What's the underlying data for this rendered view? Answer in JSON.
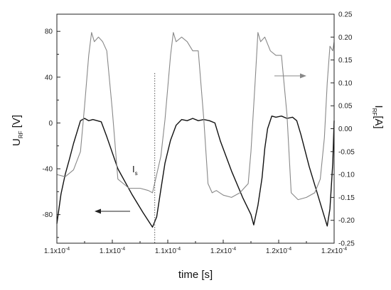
{
  "chart_data": {
    "type": "line",
    "xlabel": "time [s]",
    "x_tick_labels": [
      "1.1x10",
      "1.1x10",
      "1.1x10",
      "1.2x10",
      "1.2x10",
      "1.2x10"
    ],
    "x_tick_exponent": "-4",
    "xlim": [
      0,
      1
    ],
    "ylabel_left": {
      "main": "U",
      "sub": "RF",
      "unit": " [V]"
    },
    "ylabel_right": {
      "main": "I",
      "sub": "RF",
      "unit": "[A]"
    },
    "ylim_left": [
      -105,
      95
    ],
    "ylim_right": [
      -0.25,
      0.25
    ],
    "yticks_left": [
      "-80",
      "-40",
      "0",
      "40",
      "80"
    ],
    "yticks_left_values": [
      -80,
      -40,
      0,
      40,
      80
    ],
    "yticks_right": [
      "-0.25",
      "-0.20",
      "-0.15",
      "-0.10",
      "-0.05",
      "0.00",
      "0.05",
      "0.10",
      "0.15",
      "0.20",
      "0.25"
    ],
    "yticks_right_values": [
      -0.25,
      -0.2,
      -0.15,
      -0.1,
      -0.05,
      0,
      0.05,
      0.1,
      0.15,
      0.2,
      0.25
    ],
    "annotation_text": {
      "main": "I",
      "sub": "s"
    },
    "annotation_line_x": 0.353,
    "series": [
      {
        "axis": "left",
        "color": "#111111",
        "points": [
          [
            0,
            -88
          ],
          [
            0.015,
            -62
          ],
          [
            0.03,
            -45
          ],
          [
            0.045,
            -32
          ],
          [
            0.06,
            -18
          ],
          [
            0.075,
            -6
          ],
          [
            0.085,
            2
          ],
          [
            0.1,
            4
          ],
          [
            0.115,
            2
          ],
          [
            0.13,
            3
          ],
          [
            0.145,
            2
          ],
          [
            0.16,
            1
          ],
          [
            0.18,
            -12
          ],
          [
            0.22,
            -40
          ],
          [
            0.27,
            -62
          ],
          [
            0.31,
            -78
          ],
          [
            0.345,
            -91
          ],
          [
            0.36,
            -82
          ],
          [
            0.375,
            -58
          ],
          [
            0.39,
            -35
          ],
          [
            0.41,
            -15
          ],
          [
            0.43,
            -2
          ],
          [
            0.45,
            3
          ],
          [
            0.47,
            2
          ],
          [
            0.49,
            4
          ],
          [
            0.51,
            2
          ],
          [
            0.53,
            3
          ],
          [
            0.55,
            2
          ],
          [
            0.57,
            0
          ],
          [
            0.59,
            -16
          ],
          [
            0.63,
            -42
          ],
          [
            0.67,
            -65
          ],
          [
            0.7,
            -80
          ],
          [
            0.71,
            -89
          ],
          [
            0.725,
            -72
          ],
          [
            0.74,
            -48
          ],
          [
            0.75,
            -22
          ],
          [
            0.76,
            -5
          ],
          [
            0.775,
            6
          ],
          [
            0.79,
            5
          ],
          [
            0.81,
            6
          ],
          [
            0.83,
            4
          ],
          [
            0.85,
            5
          ],
          [
            0.865,
            2
          ],
          [
            0.88,
            -10
          ],
          [
            0.91,
            -38
          ],
          [
            0.94,
            -62
          ],
          [
            0.96,
            -78
          ],
          [
            0.975,
            -90
          ],
          [
            0.985,
            -75
          ],
          [
            0.995,
            -35
          ],
          [
            1,
            2
          ]
        ]
      },
      {
        "axis": "right",
        "color": "#888888",
        "points": [
          [
            0,
            -0.1
          ],
          [
            0.03,
            -0.105
          ],
          [
            0.06,
            -0.09
          ],
          [
            0.085,
            -0.05
          ],
          [
            0.1,
            0.05
          ],
          [
            0.115,
            0.16
          ],
          [
            0.125,
            0.21
          ],
          [
            0.135,
            0.19
          ],
          [
            0.15,
            0.2
          ],
          [
            0.165,
            0.19
          ],
          [
            0.18,
            0.17
          ],
          [
            0.2,
            0.04
          ],
          [
            0.22,
            -0.11
          ],
          [
            0.24,
            -0.12
          ],
          [
            0.26,
            -0.13
          ],
          [
            0.3,
            -0.13
          ],
          [
            0.33,
            -0.135
          ],
          [
            0.345,
            -0.14
          ],
          [
            0.36,
            -0.1
          ],
          [
            0.375,
            -0.06
          ],
          [
            0.39,
            0.02
          ],
          [
            0.41,
            0.16
          ],
          [
            0.42,
            0.21
          ],
          [
            0.43,
            0.19
          ],
          [
            0.45,
            0.2
          ],
          [
            0.47,
            0.19
          ],
          [
            0.49,
            0.17
          ],
          [
            0.51,
            0.17
          ],
          [
            0.53,
            0.02
          ],
          [
            0.545,
            -0.12
          ],
          [
            0.56,
            -0.14
          ],
          [
            0.575,
            -0.135
          ],
          [
            0.6,
            -0.145
          ],
          [
            0.63,
            -0.15
          ],
          [
            0.66,
            -0.14
          ],
          [
            0.69,
            -0.12
          ],
          [
            0.7,
            -0.05
          ],
          [
            0.715,
            0.1
          ],
          [
            0.725,
            0.21
          ],
          [
            0.735,
            0.19
          ],
          [
            0.75,
            0.2
          ],
          [
            0.77,
            0.17
          ],
          [
            0.79,
            0.16
          ],
          [
            0.81,
            0.16
          ],
          [
            0.83,
            0.03
          ],
          [
            0.845,
            -0.14
          ],
          [
            0.87,
            -0.155
          ],
          [
            0.9,
            -0.15
          ],
          [
            0.93,
            -0.14
          ],
          [
            0.95,
            -0.11
          ],
          [
            0.965,
            -0.02
          ],
          [
            0.975,
            0.1
          ],
          [
            0.985,
            0.18
          ],
          [
            0.995,
            0.17
          ],
          [
            1,
            0.19
          ]
        ]
      }
    ]
  }
}
